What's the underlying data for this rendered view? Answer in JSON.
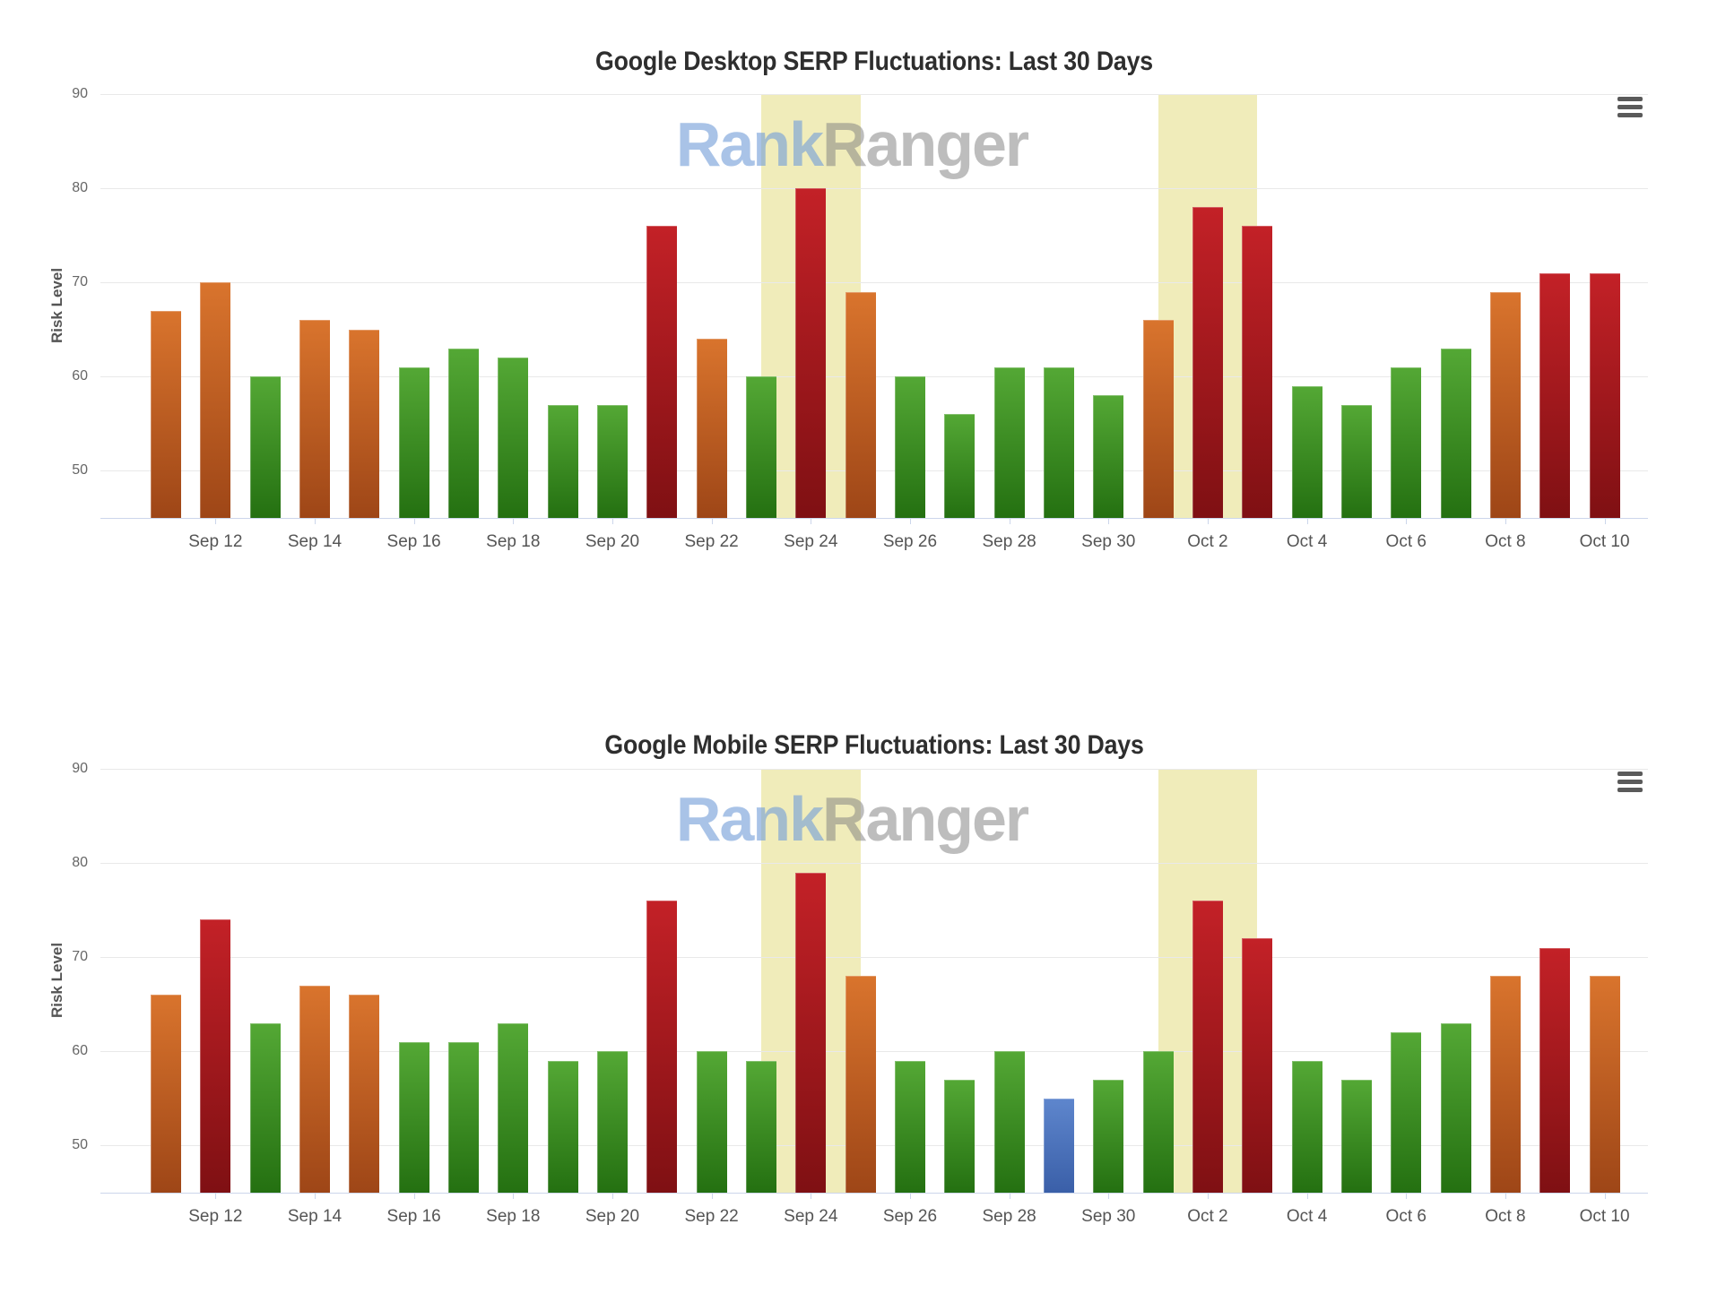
{
  "ui": {
    "watermark": {
      "part1": "Rank",
      "part2": "Ranger"
    },
    "menu_icon": "hamburger-icon"
  },
  "colors": {
    "title": "#2e2e2e",
    "band": "#f0ecba",
    "grid": "#e9e9e9",
    "axis": "#ccd6eb",
    "menu": "#5a5a5a",
    "xlabel": "#555555",
    "ylabel": "#666666",
    "wm_rank": "rgba(116,158,216,0.62)",
    "wm_ranger": "rgba(128,128,128,0.52)",
    "green_top": "#54a835",
    "green_bot": "#247011",
    "orange_top": "#d9742d",
    "orange_bot": "#9e4617",
    "red_top": "#c32127",
    "red_bot": "#7f1013",
    "blue_top": "#5e86cd",
    "blue_bot": "#3a5fa8"
  },
  "chart_data": [
    {
      "type": "bar",
      "title": "Google Desktop SERP Fluctuations: Last 30 Days",
      "xlabel": "",
      "ylabel": "Risk Level",
      "ylim": [
        45,
        90
      ],
      "yticks": [
        90,
        80,
        70,
        60,
        50
      ],
      "grid": true,
      "legend": false,
      "categories": [
        "Sep 11",
        "Sep 12",
        "Sep 13",
        "Sep 14",
        "Sep 15",
        "Sep 16",
        "Sep 17",
        "Sep 18",
        "Sep 19",
        "Sep 20",
        "Sep 21",
        "Sep 22",
        "Sep 23",
        "Sep 24",
        "Sep 25",
        "Sep 26",
        "Sep 27",
        "Sep 28",
        "Sep 29",
        "Sep 30",
        "Oct 1",
        "Oct 2",
        "Oct 3",
        "Oct 4",
        "Oct 5",
        "Oct 6",
        "Oct 7",
        "Oct 8",
        "Oct 9",
        "Oct 10"
      ],
      "values": [
        67,
        70,
        60,
        66,
        65,
        61,
        63,
        62,
        57,
        57,
        76,
        64,
        60,
        80,
        69,
        60,
        56,
        61,
        61,
        58,
        66,
        78,
        76,
        59,
        57,
        61,
        63,
        69,
        71,
        71
      ],
      "bar_colors": [
        "orange",
        "orange",
        "green",
        "orange",
        "orange",
        "green",
        "green",
        "green",
        "green",
        "green",
        "red",
        "orange",
        "green",
        "red",
        "orange",
        "green",
        "green",
        "green",
        "green",
        "green",
        "orange",
        "red",
        "red",
        "green",
        "green",
        "green",
        "green",
        "orange",
        "red",
        "red"
      ],
      "xtick_labels": [
        "Sep 12",
        "Sep 14",
        "Sep 16",
        "Sep 18",
        "Sep 20",
        "Sep 22",
        "Sep 24",
        "Sep 26",
        "Sep 28",
        "Sep 30",
        "Oct 2",
        "Oct 4",
        "Oct 6",
        "Oct 8",
        "Oct 10"
      ],
      "plot_bands": [
        [
          "Sep 23",
          "Sep 25"
        ],
        [
          "Oct 1",
          "Oct 3"
        ]
      ]
    },
    {
      "type": "bar",
      "title": "Google Mobile SERP Fluctuations: Last 30 Days",
      "xlabel": "",
      "ylabel": "Risk Level",
      "ylim": [
        45,
        90
      ],
      "yticks": [
        90,
        80,
        70,
        60,
        50
      ],
      "grid": true,
      "legend": false,
      "categories": [
        "Sep 11",
        "Sep 12",
        "Sep 13",
        "Sep 14",
        "Sep 15",
        "Sep 16",
        "Sep 17",
        "Sep 18",
        "Sep 19",
        "Sep 20",
        "Sep 21",
        "Sep 22",
        "Sep 23",
        "Sep 24",
        "Sep 25",
        "Sep 26",
        "Sep 27",
        "Sep 28",
        "Sep 29",
        "Sep 30",
        "Oct 1",
        "Oct 2",
        "Oct 3",
        "Oct 4",
        "Oct 5",
        "Oct 6",
        "Oct 7",
        "Oct 8",
        "Oct 9",
        "Oct 10"
      ],
      "values": [
        66,
        74,
        63,
        67,
        66,
        61,
        61,
        63,
        59,
        60,
        76,
        60,
        59,
        79,
        68,
        59,
        57,
        60,
        55,
        57,
        60,
        76,
        72,
        59,
        57,
        62,
        63,
        68,
        71,
        68
      ],
      "bar_colors": [
        "orange",
        "red",
        "green",
        "orange",
        "orange",
        "green",
        "green",
        "green",
        "green",
        "green",
        "red",
        "green",
        "green",
        "red",
        "orange",
        "green",
        "green",
        "green",
        "blue",
        "green",
        "green",
        "red",
        "red",
        "green",
        "green",
        "green",
        "green",
        "orange",
        "red",
        "orange"
      ],
      "xtick_labels": [
        "Sep 12",
        "Sep 14",
        "Sep 16",
        "Sep 18",
        "Sep 20",
        "Sep 22",
        "Sep 24",
        "Sep 26",
        "Sep 28",
        "Sep 30",
        "Oct 2",
        "Oct 4",
        "Oct 6",
        "Oct 8",
        "Oct 10"
      ],
      "plot_bands": [
        [
          "Sep 23",
          "Sep 25"
        ],
        [
          "Oct 1",
          "Oct 3"
        ]
      ]
    }
  ]
}
